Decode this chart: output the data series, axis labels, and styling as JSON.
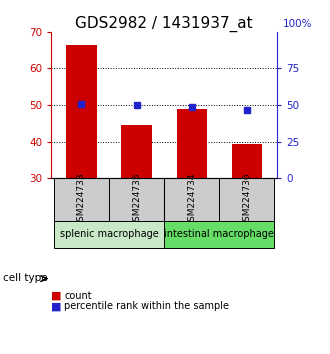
{
  "title": "GDS2982 / 1431937_at",
  "samples": [
    "GSM224733",
    "GSM224735",
    "GSM224734",
    "GSM224736"
  ],
  "counts": [
    66.5,
    44.5,
    49.0,
    39.5
  ],
  "percentiles": [
    51.0,
    50.0,
    49.0,
    47.0
  ],
  "ylim_left": [
    30,
    70
  ],
  "ylim_right": [
    0,
    100
  ],
  "yticks_left": [
    30,
    40,
    50,
    60,
    70
  ],
  "yticks_right": [
    0,
    25,
    50,
    75
  ],
  "bar_color": "#cc0000",
  "dot_color": "#2222cc",
  "group1_label": "splenic macrophage",
  "group2_label": "intestinal macrophage",
  "group1_color": "#c8e8c8",
  "group2_color": "#66dd66",
  "sample_box_color": "#cccccc",
  "legend_count_label": "count",
  "legend_pct_label": "percentile rank within the sample",
  "cell_type_label": "cell type",
  "dotted_grid_values": [
    40,
    50,
    60
  ],
  "title_fontsize": 11,
  "tick_fontsize": 7.5,
  "sample_fontsize": 6.5,
  "group_fontsize": 7,
  "legend_fontsize": 7
}
